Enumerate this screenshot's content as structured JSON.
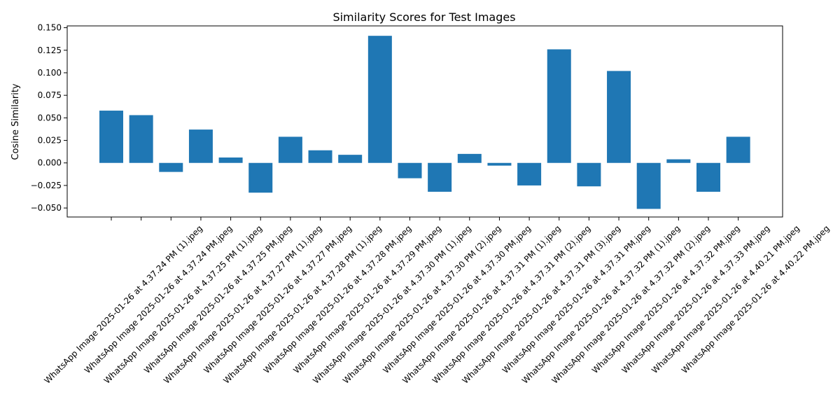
{
  "chart_data": {
    "type": "bar",
    "title": "Similarity Scores for Test Images",
    "xlabel": "",
    "ylabel": "Cosine Similarity",
    "ylim": [
      -0.06,
      0.152
    ],
    "yticks": [
      -0.05,
      -0.025,
      0.0,
      0.025,
      0.05,
      0.075,
      0.1,
      0.125,
      0.15
    ],
    "ytick_labels": [
      "−0.050",
      "−0.025",
      "0.000",
      "0.025",
      "0.050",
      "0.075",
      "0.100",
      "0.125",
      "0.150"
    ],
    "grid": false,
    "legend": "none",
    "bar_color": "#1f77b4",
    "categories": [
      "WhatsApp Image 2025-01-26 at 4.37.24 PM (1).jpeg",
      "WhatsApp Image 2025-01-26 at 4.37.24 PM.jpeg",
      "WhatsApp Image 2025-01-26 at 4.37.25 PM (1).jpeg",
      "WhatsApp Image 2025-01-26 at 4.37.25 PM.jpeg",
      "WhatsApp Image 2025-01-26 at 4.37.27 PM (1).jpeg",
      "WhatsApp Image 2025-01-26 at 4.37.27 PM.jpeg",
      "WhatsApp Image 2025-01-26 at 4.37.28 PM (1).jpeg",
      "WhatsApp Image 2025-01-26 at 4.37.28 PM.jpeg",
      "WhatsApp Image 2025-01-26 at 4.37.29 PM.jpeg",
      "WhatsApp Image 2025-01-26 at 4.37.30 PM (1).jpeg",
      "WhatsApp Image 2025-01-26 at 4.37.30 PM (2).jpeg",
      "WhatsApp Image 2025-01-26 at 4.37.30 PM.jpeg",
      "WhatsApp Image 2025-01-26 at 4.37.31 PM (1).jpeg",
      "WhatsApp Image 2025-01-26 at 4.37.31 PM (2).jpeg",
      "WhatsApp Image 2025-01-26 at 4.37.31 PM (3).jpeg",
      "WhatsApp Image 2025-01-26 at 4.37.31 PM.jpeg",
      "WhatsApp Image 2025-01-26 at 4.37.32 PM (1).jpeg",
      "WhatsApp Image 2025-01-26 at 4.37.32 PM (2).jpeg",
      "WhatsApp Image 2025-01-26 at 4.37.32 PM.jpeg",
      "WhatsApp Image 2025-01-26 at 4.37.33 PM.jpeg",
      "WhatsApp Image 2025-01-26 at 4.40.21 PM.jpeg",
      "WhatsApp Image 2025-01-26 at 4.40.22 PM.jpeg"
    ],
    "values": [
      0.058,
      0.053,
      -0.01,
      0.037,
      0.006,
      -0.033,
      0.029,
      0.014,
      0.009,
      0.141,
      -0.017,
      -0.032,
      0.01,
      -0.003,
      -0.025,
      0.126,
      -0.026,
      0.102,
      -0.051,
      0.004,
      -0.032,
      0.029
    ]
  }
}
